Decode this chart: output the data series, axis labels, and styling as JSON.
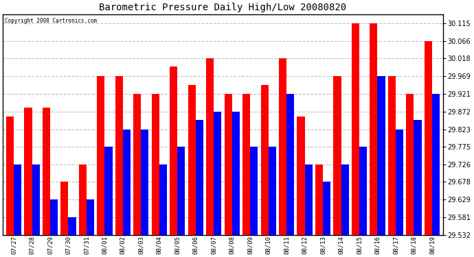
{
  "title": "Barometric Pressure Daily High/Low 20080820",
  "copyright": "Copyright 2008 Cartronics.com",
  "dates": [
    "07/27",
    "07/28",
    "07/29",
    "07/30",
    "07/31",
    "08/01",
    "08/02",
    "08/03",
    "08/04",
    "08/05",
    "08/06",
    "08/07",
    "08/08",
    "08/09",
    "08/10",
    "08/11",
    "08/12",
    "08/13",
    "08/14",
    "08/15",
    "08/16",
    "08/17",
    "08/18",
    "08/19"
  ],
  "highs": [
    29.858,
    29.882,
    29.882,
    29.678,
    29.726,
    29.969,
    29.969,
    29.921,
    29.921,
    29.995,
    29.945,
    30.018,
    29.921,
    29.921,
    29.945,
    30.018,
    29.858,
    29.726,
    29.969,
    30.115,
    30.115,
    29.969,
    29.921,
    30.066
  ],
  "lows": [
    29.726,
    29.726,
    29.629,
    29.581,
    29.629,
    29.775,
    29.823,
    29.823,
    29.726,
    29.775,
    29.848,
    29.872,
    29.872,
    29.775,
    29.775,
    29.921,
    29.726,
    29.678,
    29.726,
    29.775,
    29.969,
    29.823,
    29.848,
    29.921
  ],
  "high_color": "#ff0000",
  "low_color": "#0000ff",
  "bg_color": "#ffffff",
  "plot_bg": "#ffffff",
  "grid_color": "#c0c0c0",
  "yticks": [
    29.532,
    29.581,
    29.629,
    29.678,
    29.726,
    29.775,
    29.823,
    29.872,
    29.921,
    29.969,
    30.018,
    30.066,
    30.115
  ],
  "ymin": 29.532,
  "ymax": 30.14,
  "bar_width": 0.42
}
